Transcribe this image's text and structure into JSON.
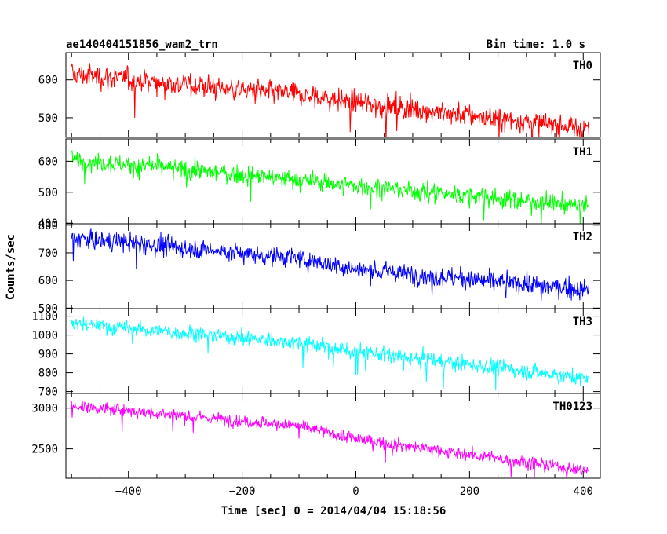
{
  "header": {
    "title": "ae140404151856_wam2_trn",
    "bin_time": "Bin time: 1.0 s"
  },
  "axes": {
    "ylabel": "Counts/sec",
    "xlabel": "Time [sec] 0 = 2014/04/04 15:18:56"
  },
  "chart_data": {
    "type": "line",
    "xlim": [
      -510,
      430
    ],
    "x_ticks": [
      -400,
      -200,
      0,
      200,
      400
    ],
    "x_start": -500,
    "x_end": 410,
    "x_step": 1,
    "grid": false,
    "panels": [
      {
        "name": "TH0",
        "color": "#ff0000",
        "ylim": [
          448,
          672
        ],
        "y_ticks": [
          500,
          600
        ],
        "trend": [
          [
            -500,
            615
          ],
          [
            -100,
            560
          ],
          [
            0,
            540
          ],
          [
            410,
            470
          ]
        ],
        "noise": 22
      },
      {
        "name": "TH1",
        "color": "#00ff00",
        "ylim": [
          398,
          672
        ],
        "y_ticks": [
          400,
          500,
          600
        ],
        "trend": [
          [
            -500,
            605
          ],
          [
            -100,
            540
          ],
          [
            0,
            520
          ],
          [
            410,
            455
          ]
        ],
        "noise": 22
      },
      {
        "name": "TH2",
        "color": "#0000ff",
        "ylim": [
          498,
          805
        ],
        "y_ticks": [
          500,
          600,
          700,
          800
        ],
        "trend": [
          [
            -500,
            755
          ],
          [
            -100,
            680
          ],
          [
            0,
            640
          ],
          [
            410,
            565
          ]
        ],
        "noise": 25
      },
      {
        "name": "TH3",
        "color": "#00ffff",
        "ylim": [
          690,
          1140
        ],
        "y_ticks": [
          700,
          800,
          900,
          1000,
          1100
        ],
        "trend": [
          [
            -500,
            1060
          ],
          [
            -100,
            960
          ],
          [
            0,
            910
          ],
          [
            410,
            770
          ]
        ],
        "noise": 30
      },
      {
        "name": "TH0123",
        "color": "#ff00ff",
        "ylim": [
          2140,
          3180
        ],
        "y_ticks": [
          2500,
          3000
        ],
        "trend": [
          [
            -500,
            3030
          ],
          [
            -100,
            2780
          ],
          [
            0,
            2620
          ],
          [
            410,
            2230
          ]
        ],
        "noise": 55
      }
    ]
  }
}
